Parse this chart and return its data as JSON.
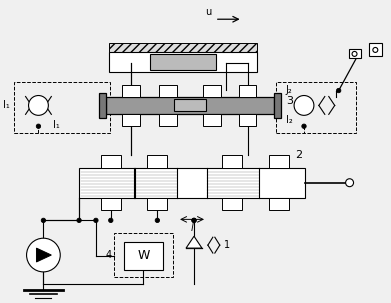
{
  "bg_color": "#f0f0f0",
  "line_color": "#111111",
  "gray_valve3": "#909090",
  "gray_light": "#c8c8c8",
  "gray_dark": "#606060",
  "labels": {
    "u_arrow": "u",
    "label_1": "1",
    "label_2": "2",
    "label_3": "3",
    "label_4": "4",
    "I1_left": "I₁",
    "I1_inner": "I₁",
    "I2_label": "I₂",
    "J2_label": "J₂",
    "l_label": "l"
  },
  "figsize": [
    3.91,
    3.03
  ],
  "dpi": 100
}
